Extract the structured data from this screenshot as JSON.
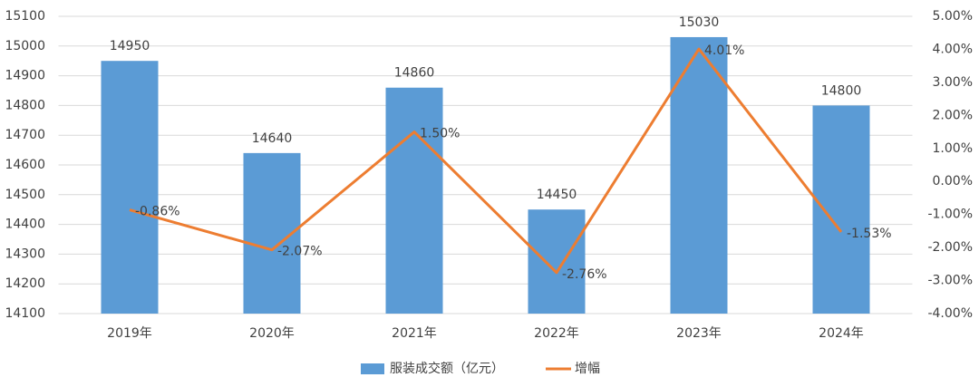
{
  "chart_data": {
    "type": "combo",
    "categories": [
      "2019年",
      "2020年",
      "2021年",
      "2022年",
      "2023年",
      "2024年"
    ],
    "series": [
      {
        "name": "服装成交额（亿元）",
        "type": "bar",
        "color": "#5b9bd5",
        "values": [
          14950,
          14640,
          14860,
          14450,
          15030,
          14800
        ]
      },
      {
        "name": "增幅",
        "type": "line",
        "axis": "y2",
        "color": "#ed7d31",
        "values": [
          -0.86,
          -2.07,
          1.5,
          -2.76,
          4.01,
          -1.53
        ],
        "value_labels": [
          "-0.86%",
          "-2.07%",
          "1.50%",
          "-2.76%",
          "4.01%",
          "-1.53%"
        ]
      }
    ],
    "ylim": [
      14100,
      15100
    ],
    "yticks": [
      14100,
      14200,
      14300,
      14400,
      14500,
      14600,
      14700,
      14800,
      14900,
      15000,
      15100
    ],
    "y2lim": [
      -4,
      5
    ],
    "y2ticks": [
      {
        "value": -4,
        "label": "-4.00%"
      },
      {
        "value": -3,
        "label": "-3.00%"
      },
      {
        "value": -2,
        "label": "-2.00%"
      },
      {
        "value": -1,
        "label": "-1.00%"
      },
      {
        "value": 0,
        "label": "0.00%"
      },
      {
        "value": 1,
        "label": "1.00%"
      },
      {
        "value": 2,
        "label": "2.00%"
      },
      {
        "value": 3,
        "label": "3.00%"
      },
      {
        "value": 4,
        "label": "4.00%"
      },
      {
        "value": 5,
        "label": "5.00%"
      }
    ],
    "grid": true
  }
}
